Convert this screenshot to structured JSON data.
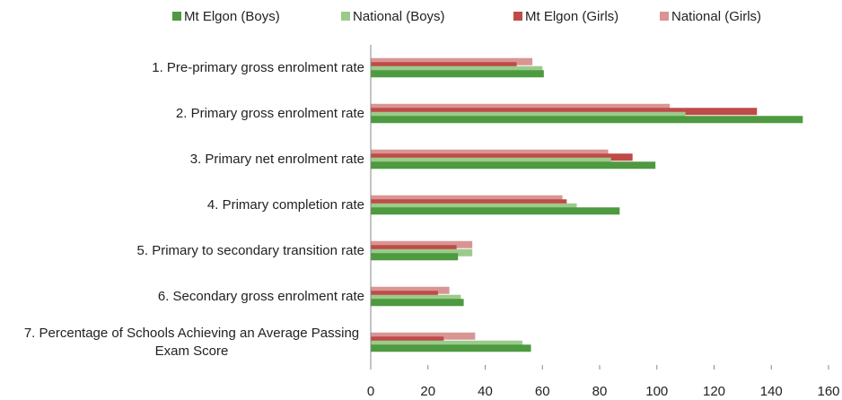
{
  "chart_data": {
    "type": "bar",
    "orientation": "horizontal",
    "categories": [
      "1. Pre-primary gross enrolment rate",
      "2. Primary gross enrolment rate",
      "3. Primary net enrolment rate",
      "4. Primary completion rate",
      "5. Primary to secondary transition rate",
      "6. Secondary gross enrolment rate",
      "7. Percentage of Schools Achieving an Average Passing Exam Score"
    ],
    "series": [
      {
        "name": "Mt Elgon (Boys)",
        "color": "#4e9a40",
        "values": [
          60.5,
          151,
          99.5,
          87,
          30.5,
          32.5,
          56
        ]
      },
      {
        "name": "National (Boys)",
        "color": "#9bcb8b",
        "values": [
          60,
          110,
          84,
          72,
          35.5,
          31.5,
          53
        ]
      },
      {
        "name": "Mt Elgon (Girls)",
        "color": "#bf4b48",
        "values": [
          51,
          135,
          91.5,
          68.5,
          30,
          23.5,
          25.5
        ]
      },
      {
        "name": "National (Girls)",
        "color": "#d99594",
        "values": [
          56.5,
          104.5,
          83,
          67,
          35.5,
          27.5,
          36.5
        ]
      }
    ],
    "xlim": [
      0,
      160
    ],
    "xticks": [
      0,
      20,
      40,
      60,
      80,
      100,
      120,
      140,
      160
    ],
    "legend": "top"
  }
}
